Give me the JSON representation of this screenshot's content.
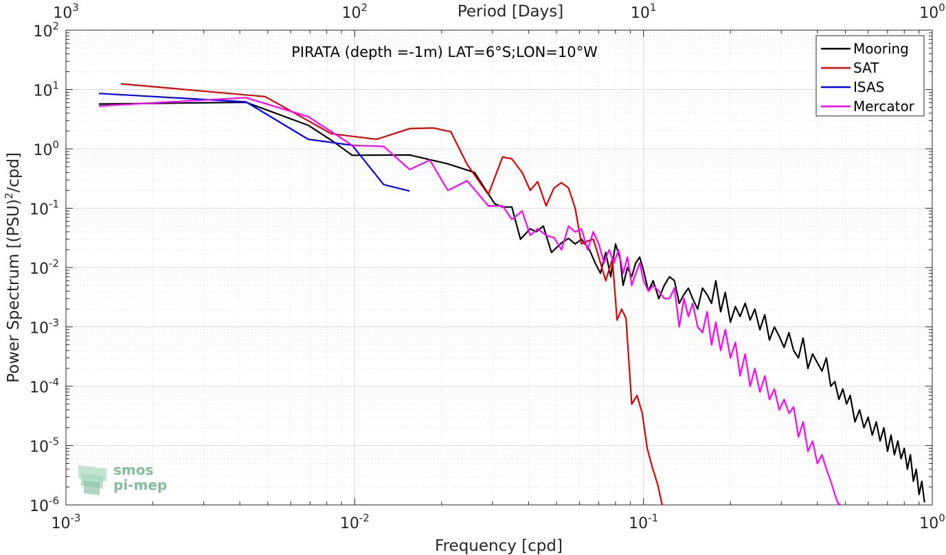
{
  "chart_data": {
    "type": "line",
    "title": "PIRATA (depth =-1m) LAT=6°S;LON=10°W",
    "xlabel": "Frequency [cpd]",
    "ylabel": "Power Spectrum [(PSU)",
    "ylabel_sup": "2",
    "ylabel_tail": "/cpd]",
    "top_xlabel": "Period [Days]",
    "xscale": "log",
    "yscale": "log",
    "xlim": [
      0.001,
      1
    ],
    "ylim": [
      1e-06,
      100
    ],
    "grid": true,
    "legend_position": "top-right",
    "x_ticks": [
      {
        "value": 0.001,
        "base": "10",
        "exp": "-3"
      },
      {
        "value": 0.01,
        "base": "10",
        "exp": "-2"
      },
      {
        "value": 0.1,
        "base": "10",
        "exp": "-1"
      },
      {
        "value": 1,
        "base": "10",
        "exp": "0"
      }
    ],
    "top_ticks": [
      {
        "value": 0.001,
        "base": "10",
        "exp": "3"
      },
      {
        "value": 0.01,
        "base": "10",
        "exp": "2"
      },
      {
        "value": 0.1,
        "base": "10",
        "exp": "1"
      },
      {
        "value": 1,
        "base": "10",
        "exp": "0"
      }
    ],
    "y_ticks": [
      {
        "value": 100,
        "base": "10",
        "exp": "2"
      },
      {
        "value": 10,
        "base": "10",
        "exp": "1"
      },
      {
        "value": 1,
        "base": "10",
        "exp": "0"
      },
      {
        "value": 0.1,
        "base": "10",
        "exp": "-1"
      },
      {
        "value": 0.01,
        "base": "10",
        "exp": "-2"
      },
      {
        "value": 0.001,
        "base": "10",
        "exp": "-3"
      },
      {
        "value": 0.0001,
        "base": "10",
        "exp": "-4"
      },
      {
        "value": 1e-05,
        "base": "10",
        "exp": "-5"
      },
      {
        "value": 1e-06,
        "base": "10",
        "exp": "-6"
      }
    ],
    "series": [
      {
        "name": "Mooring",
        "color": "#000000",
        "x": [
          0.0013,
          0.0042,
          0.0069,
          0.0083,
          0.0098,
          0.0155,
          0.021,
          0.026,
          0.0285,
          0.0305,
          0.0325,
          0.035,
          0.0375,
          0.0405,
          0.0425,
          0.045,
          0.048,
          0.052,
          0.055,
          0.058,
          0.061,
          0.065,
          0.068,
          0.071,
          0.074,
          0.077,
          0.08,
          0.083,
          0.085,
          0.088,
          0.091,
          0.094,
          0.097,
          0.1,
          0.104,
          0.108,
          0.113,
          0.118,
          0.123,
          0.128,
          0.133,
          0.138,
          0.143,
          0.148,
          0.154,
          0.16,
          0.166,
          0.172,
          0.178,
          0.185,
          0.192,
          0.2,
          0.208,
          0.216,
          0.225,
          0.234,
          0.243,
          0.253,
          0.263,
          0.273,
          0.284,
          0.295,
          0.307,
          0.319,
          0.331,
          0.344,
          0.357,
          0.371,
          0.385,
          0.4,
          0.415,
          0.43,
          0.445,
          0.46,
          0.475,
          0.49,
          0.505,
          0.52,
          0.54,
          0.56,
          0.58,
          0.6,
          0.62,
          0.64,
          0.66,
          0.68,
          0.7,
          0.72,
          0.74,
          0.76,
          0.78,
          0.8,
          0.82,
          0.84,
          0.86,
          0.88,
          0.9,
          0.92,
          0.94
        ],
        "y": [
          5.7,
          6.1,
          2.5,
          1.4,
          0.78,
          0.79,
          0.56,
          0.4,
          0.2,
          0.12,
          0.105,
          0.105,
          0.03,
          0.045,
          0.04,
          0.05,
          0.018,
          0.026,
          0.031,
          0.025,
          0.03,
          0.02,
          0.012,
          0.008,
          0.018,
          0.007,
          0.025,
          0.014,
          0.005,
          0.01,
          0.007,
          0.012,
          0.015,
          0.009,
          0.004,
          0.006,
          0.003,
          0.005,
          0.007,
          0.006,
          0.0025,
          0.0035,
          0.0045,
          0.003,
          0.002,
          0.0045,
          0.0035,
          0.0025,
          0.006,
          0.0018,
          0.0038,
          0.0012,
          0.0022,
          0.0015,
          0.0025,
          0.0013,
          0.002,
          0.0009,
          0.0016,
          0.0006,
          0.001,
          0.0007,
          0.00045,
          0.0008,
          0.0004,
          0.0003,
          0.00065,
          0.0002,
          0.00035,
          0.00025,
          0.00018,
          0.0003,
          0.0001,
          0.00012,
          6e-05,
          9e-05,
          5e-05,
          7e-05,
          2.5e-05,
          4e-05,
          2e-05,
          3e-05,
          1.5e-05,
          2.5e-05,
          1.2e-05,
          2e-05,
          8e-06,
          1.5e-05,
          7e-06,
          1.2e-05,
          6e-06,
          9e-06,
          4e-06,
          7e-06,
          2.5e-06,
          4e-06,
          1.5e-06,
          2.5e-06,
          1.1e-06
        ]
      },
      {
        "name": "SAT",
        "color": "#e00000",
        "x": [
          0.00155,
          0.0049,
          0.0083,
          0.0119,
          0.0155,
          0.0187,
          0.0215,
          0.0245,
          0.029,
          0.0325,
          0.035,
          0.038,
          0.0405,
          0.043,
          0.046,
          0.049,
          0.052,
          0.055,
          0.058,
          0.061,
          0.064,
          0.067,
          0.07,
          0.074,
          0.078,
          0.081,
          0.084,
          0.087,
          0.091,
          0.095,
          0.099,
          0.103,
          0.107,
          0.112,
          0.116
        ],
        "y": [
          12.5,
          7.6,
          1.8,
          1.45,
          2.2,
          2.25,
          1.95,
          0.55,
          0.17,
          0.73,
          0.68,
          0.4,
          0.2,
          0.28,
          0.11,
          0.22,
          0.27,
          0.22,
          0.1,
          0.025,
          0.028,
          0.03,
          0.015,
          0.006,
          0.014,
          0.0013,
          0.002,
          0.0014,
          5e-05,
          7e-05,
          3.5e-05,
          9e-06,
          4.5e-06,
          2.2e-06,
          1e-06
        ]
      },
      {
        "name": "ISAS",
        "color": "#0000ff",
        "x": [
          0.0013,
          0.0042,
          0.0069,
          0.0098,
          0.0126,
          0.0155
        ],
        "y": [
          8.6,
          6.2,
          1.45,
          1.15,
          0.25,
          0.195
        ]
      },
      {
        "name": "Mercator",
        "color": "#ff00ff",
        "x": [
          0.0013,
          0.0042,
          0.0069,
          0.0098,
          0.0126,
          0.0155,
          0.0182,
          0.021,
          0.0245,
          0.029,
          0.0325,
          0.035,
          0.038,
          0.0405,
          0.043,
          0.046,
          0.049,
          0.052,
          0.055,
          0.058,
          0.061,
          0.064,
          0.067,
          0.07,
          0.073,
          0.076,
          0.079,
          0.082,
          0.085,
          0.088,
          0.091,
          0.094,
          0.097,
          0.1,
          0.104,
          0.108,
          0.113,
          0.118,
          0.123,
          0.128,
          0.133,
          0.138,
          0.143,
          0.148,
          0.154,
          0.16,
          0.166,
          0.172,
          0.178,
          0.185,
          0.192,
          0.2,
          0.208,
          0.216,
          0.225,
          0.234,
          0.243,
          0.253,
          0.263,
          0.273,
          0.284,
          0.295,
          0.307,
          0.319,
          0.331,
          0.344,
          0.357,
          0.371,
          0.385,
          0.4,
          0.415,
          0.43,
          0.445,
          0.46,
          0.47,
          0.48
        ],
        "y": [
          5.3,
          7.3,
          3.5,
          1.15,
          1.1,
          0.45,
          0.65,
          0.2,
          0.29,
          0.11,
          0.11,
          0.065,
          0.09,
          0.035,
          0.045,
          0.035,
          0.032,
          0.02,
          0.05,
          0.04,
          0.045,
          0.02,
          0.04,
          0.025,
          0.012,
          0.02,
          0.012,
          0.02,
          0.008,
          0.015,
          0.005,
          0.008,
          0.012,
          0.006,
          0.004,
          0.005,
          0.004,
          0.003,
          0.003,
          0.0045,
          0.001,
          0.003,
          0.0015,
          0.0025,
          0.001,
          0.0008,
          0.0018,
          0.0005,
          0.0012,
          0.0004,
          0.0009,
          0.0003,
          0.00055,
          0.00015,
          0.00035,
          0.0001,
          0.0002,
          8e-05,
          0.00015,
          6e-05,
          9e-05,
          4e-05,
          6e-05,
          3.5e-05,
          4.5e-05,
          1.4e-05,
          2.5e-05,
          8e-06,
          1.2e-05,
          5e-06,
          7e-06,
          4e-06,
          2.5e-06,
          1.5e-06,
          1.1e-06,
          1e-06
        ]
      }
    ]
  },
  "logo": {
    "line1": "smos",
    "line2": "pi-mep",
    "color": "#7fbf9a"
  }
}
